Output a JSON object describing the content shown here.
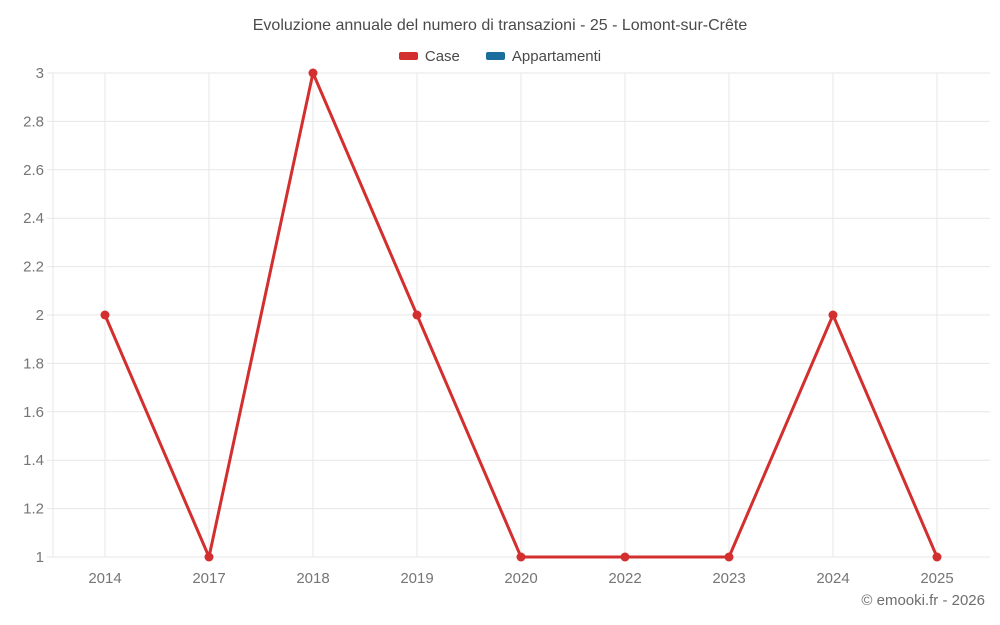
{
  "chart_data": {
    "type": "line",
    "title": "Evoluzione annuale del numero di transazioni - 25 - Lomont-sur-Crête",
    "categories": [
      "2014",
      "2017",
      "2018",
      "2019",
      "2020",
      "2022",
      "2023",
      "2024",
      "2025"
    ],
    "series": [
      {
        "name": "Case",
        "color": "#d32f2f",
        "values": [
          2,
          1,
          3,
          2,
          1,
          1,
          1,
          2,
          1
        ]
      },
      {
        "name": "Appartamenti",
        "color": "#1a6d9e",
        "values": []
      }
    ],
    "xlabel": "",
    "ylabel": "",
    "ylim": [
      1,
      3
    ],
    "y_ticks": [
      "1",
      "1.2",
      "1.4",
      "1.6",
      "1.8",
      "2",
      "2.2",
      "2.4",
      "2.6",
      "2.8",
      "3"
    ],
    "grid": true,
    "legend_position": "top"
  },
  "footer": {
    "text": "© emooki.fr - 2026"
  },
  "colors": {
    "grid": "#e7e7e7",
    "tick_text": "#757575",
    "title_text": "#4a4a4a",
    "footer_text": "#6e6e6e"
  }
}
